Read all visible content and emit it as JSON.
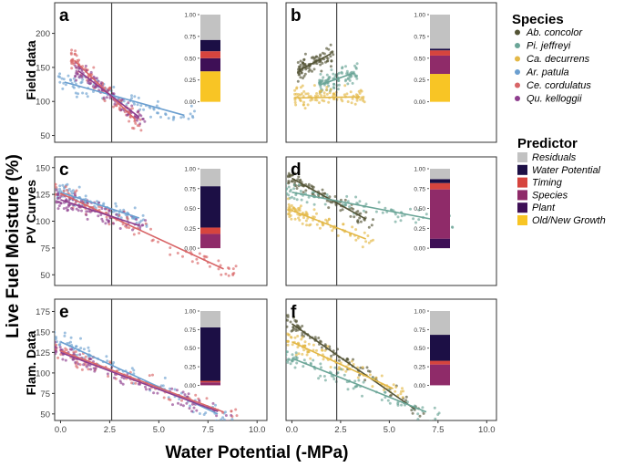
{
  "figure": {
    "y_title": "Live Fuel Moisture (%)",
    "x_title": "Water Potential (-MPa)",
    "row_labels": [
      "Field data",
      "PV Curves",
      "Flam. Data"
    ]
  },
  "legend_species": {
    "title": "Species",
    "items": [
      {
        "name": "Ab. concolor",
        "color": "#545436"
      },
      {
        "name": "Pi. jeffreyi",
        "color": "#6aa597"
      },
      {
        "name": "Ca. decurrens",
        "color": "#e3b847"
      },
      {
        "name": "Ar. patula",
        "color": "#6b9fd0"
      },
      {
        "name": "Ce. cordulatus",
        "color": "#d86567"
      },
      {
        "name": "Qu. kelloggii",
        "color": "#8e3d8e"
      }
    ]
  },
  "legend_predictor": {
    "title": "Predictor",
    "items": [
      {
        "name": "Residuals",
        "color": "#c2c2c2"
      },
      {
        "name": "Water Potential",
        "color": "#1c0f45"
      },
      {
        "name": "Timing",
        "color": "#d6443e"
      },
      {
        "name": "Species",
        "color": "#8f2b69"
      },
      {
        "name": "Plant",
        "color": "#3e0f56"
      },
      {
        "name": "Old/New Growth",
        "color": "#f8c525"
      }
    ]
  },
  "chart_data": [
    {
      "panel": "a",
      "type": "scatter",
      "title": "",
      "row": "Field data",
      "xlabel": "Water Potential (-MPa)",
      "ylabel": "Live Fuel Moisture (%)",
      "xlim": [
        -0.3,
        10.5
      ],
      "ylim": [
        40,
        245
      ],
      "yticks": [
        50,
        100,
        150,
        200
      ],
      "xticks": [],
      "vline_x": 2.6,
      "series": [
        {
          "species": "Ar. patula",
          "x_range": [
            0.2,
            6.3
          ],
          "y_intercept": 130,
          "slope": -8
        },
        {
          "species": "Ce. cordulatus",
          "x_range": [
            0.7,
            3.8
          ],
          "y_intercept": 180,
          "slope": -28
        },
        {
          "species": "Qu. kelloggii",
          "x_range": [
            0.9,
            4.0
          ],
          "y_intercept": 165,
          "slope": -22
        }
      ],
      "variance_bar": {
        "yticks": [
          0.0,
          0.25,
          0.5,
          0.75,
          1.0
        ],
        "ytick_labels": [
          "0.00",
          "0.25",
          "0.50",
          "0.75",
          "1.00"
        ],
        "segments": [
          {
            "predictor": "Old/New Growth",
            "value": 0.35
          },
          {
            "predictor": "Plant",
            "value": 0.15
          },
          {
            "predictor": "Species",
            "value": 0.0
          },
          {
            "predictor": "Timing",
            "value": 0.08
          },
          {
            "predictor": "Water Potential",
            "value": 0.13
          },
          {
            "predictor": "Residuals",
            "value": 0.29
          }
        ]
      }
    },
    {
      "panel": "b",
      "type": "scatter",
      "title": "",
      "row": "Field data",
      "xlim": [
        -0.3,
        10.5
      ],
      "ylim": [
        40,
        245
      ],
      "yticks": [],
      "xticks": [],
      "vline_x": 2.3,
      "series": [
        {
          "species": "Ab. concolor",
          "x_range": [
            0.4,
            2.0
          ],
          "y_intercept": 140,
          "slope": 15
        },
        {
          "species": "Pi. jeffreyi",
          "x_range": [
            1.5,
            3.2
          ],
          "y_intercept": 110,
          "slope": 10
        },
        {
          "species": "Ca. decurrens",
          "x_range": [
            0.3,
            3.5
          ],
          "y_intercept": 105,
          "slope": 0.5
        }
      ],
      "variance_bar": {
        "yticks": [
          0.0,
          0.25,
          0.5,
          0.75,
          1.0
        ],
        "ytick_labels": [
          "0.00",
          "0.25",
          "0.50",
          "0.75",
          "1.00"
        ],
        "segments": [
          {
            "predictor": "Old/New Growth",
            "value": 0.32
          },
          {
            "predictor": "Plant",
            "value": 0.0
          },
          {
            "predictor": "Species",
            "value": 0.21
          },
          {
            "predictor": "Timing",
            "value": 0.06
          },
          {
            "predictor": "Water Potential",
            "value": 0.02
          },
          {
            "predictor": "Residuals",
            "value": 0.39
          }
        ]
      }
    },
    {
      "panel": "c",
      "type": "scatter",
      "title": "",
      "row": "PV Curves",
      "xlim": [
        -0.3,
        10.5
      ],
      "ylim": [
        40,
        160
      ],
      "yticks": [
        50,
        75,
        100,
        125,
        150
      ],
      "xticks": [],
      "vline_x": 2.6,
      "series": [
        {
          "species": "Ar. patula",
          "x_range": [
            0.0,
            4.0
          ],
          "y_intercept": 127,
          "slope": -6
        },
        {
          "species": "Ce. cordulatus",
          "x_range": [
            0.0,
            8.3
          ],
          "y_intercept": 126,
          "slope": -8.5
        },
        {
          "species": "Qu. kelloggii",
          "x_range": [
            0.0,
            4.0
          ],
          "y_intercept": 120,
          "slope": -6
        }
      ],
      "variance_bar": {
        "yticks": [
          0.0,
          0.25,
          0.5,
          0.75,
          1.0
        ],
        "ytick_labels": [
          "0.00",
          "0.25",
          "0.50",
          "0.75",
          "1.00"
        ],
        "segments": [
          {
            "predictor": "Old/New Growth",
            "value": 0.0
          },
          {
            "predictor": "Plant",
            "value": 0.0
          },
          {
            "predictor": "Species",
            "value": 0.18
          },
          {
            "predictor": "Timing",
            "value": 0.08
          },
          {
            "predictor": "Water Potential",
            "value": 0.52
          },
          {
            "predictor": "Residuals",
            "value": 0.22
          }
        ]
      }
    },
    {
      "panel": "d",
      "type": "scatter",
      "title": "",
      "row": "PV Curves",
      "xlim": [
        -0.3,
        10.5
      ],
      "ylim": [
        40,
        160
      ],
      "yticks": [],
      "xticks": [],
      "vline_x": 2.3,
      "series": [
        {
          "species": "Ab. concolor",
          "x_range": [
            0.0,
            3.8
          ],
          "y_intercept": 140,
          "slope": -10
        },
        {
          "species": "Pi. jeffreyi",
          "x_range": [
            0.0,
            7.5
          ],
          "y_intercept": 127,
          "slope": -3.5
        },
        {
          "species": "Ca. decurrens",
          "x_range": [
            0.0,
            3.8
          ],
          "y_intercept": 110,
          "slope": -7
        }
      ],
      "variance_bar": {
        "yticks": [
          0.0,
          0.25,
          0.5,
          0.75,
          1.0
        ],
        "ytick_labels": [
          "0.00",
          "0.25",
          "0.50",
          "0.75",
          "1.00"
        ],
        "segments": [
          {
            "predictor": "Old/New Growth",
            "value": 0.0
          },
          {
            "predictor": "Plant",
            "value": 0.12
          },
          {
            "predictor": "Species",
            "value": 0.62
          },
          {
            "predictor": "Timing",
            "value": 0.08
          },
          {
            "predictor": "Water Potential",
            "value": 0.05
          },
          {
            "predictor": "Residuals",
            "value": 0.13
          }
        ]
      }
    },
    {
      "panel": "e",
      "type": "scatter",
      "title": "",
      "row": "Flam. Data",
      "xlim": [
        -0.3,
        10.5
      ],
      "ylim": [
        42,
        190
      ],
      "yticks": [
        50,
        75,
        100,
        125,
        150,
        175
      ],
      "xticks": [
        0.0,
        2.5,
        5.0,
        7.5,
        10.0
      ],
      "xtick_labels": [
        "0.0",
        "2.5",
        "5.0",
        "7.5",
        "10.0"
      ],
      "vline_x": 2.6,
      "series": [
        {
          "species": "Ar. patula",
          "x_range": [
            0.0,
            8.0
          ],
          "y_intercept": 138,
          "slope": -11
        },
        {
          "species": "Ce. cordulatus",
          "x_range": [
            0.0,
            8.3
          ],
          "y_intercept": 127,
          "slope": -9
        },
        {
          "species": "Qu. kelloggii",
          "x_range": [
            0.0,
            8.0
          ],
          "y_intercept": 125,
          "slope": -9
        }
      ],
      "variance_bar": {
        "yticks": [
          0.0,
          0.25,
          0.5,
          0.75,
          1.0
        ],
        "ytick_labels": [
          "0.00",
          "0.25",
          "0.50",
          "0.75",
          "1.00"
        ],
        "segments": [
          {
            "predictor": "Old/New Growth",
            "value": 0.0
          },
          {
            "predictor": "Plant",
            "value": 0.0
          },
          {
            "predictor": "Species",
            "value": 0.04
          },
          {
            "predictor": "Timing",
            "value": 0.02
          },
          {
            "predictor": "Water Potential",
            "value": 0.72
          },
          {
            "predictor": "Residuals",
            "value": 0.22
          }
        ]
      }
    },
    {
      "panel": "f",
      "type": "scatter",
      "title": "",
      "row": "Flam. Data",
      "xlim": [
        -0.3,
        10.5
      ],
      "ylim": [
        42,
        190
      ],
      "yticks": [],
      "xticks": [
        0.0,
        2.5,
        5.0,
        7.5,
        10.0
      ],
      "xtick_labels": [
        "0.0",
        "2.5",
        "5.0",
        "7.5",
        "10.0"
      ],
      "vline_x": 2.3,
      "series": [
        {
          "species": "Ab. concolor",
          "x_range": [
            0.0,
            6.3
          ],
          "y_intercept": 160,
          "slope": -16.5
        },
        {
          "species": "Ca. decurrens",
          "x_range": [
            0.0,
            5.2
          ],
          "y_intercept": 138,
          "slope": -11
        },
        {
          "species": "Pi. jeffreyi",
          "x_range": [
            0.0,
            6.9
          ],
          "y_intercept": 118,
          "slope": -9.5
        }
      ],
      "variance_bar": {
        "yticks": [
          0.0,
          0.25,
          0.5,
          0.75,
          1.0
        ],
        "ytick_labels": [
          "0.00",
          "0.25",
          "0.50",
          "0.75",
          "1.00"
        ],
        "segments": [
          {
            "predictor": "Old/New Growth",
            "value": 0.0
          },
          {
            "predictor": "Plant",
            "value": 0.0
          },
          {
            "predictor": "Species",
            "value": 0.28
          },
          {
            "predictor": "Timing",
            "value": 0.05
          },
          {
            "predictor": "Water Potential",
            "value": 0.35
          },
          {
            "predictor": "Residuals",
            "value": 0.32
          }
        ]
      }
    }
  ]
}
